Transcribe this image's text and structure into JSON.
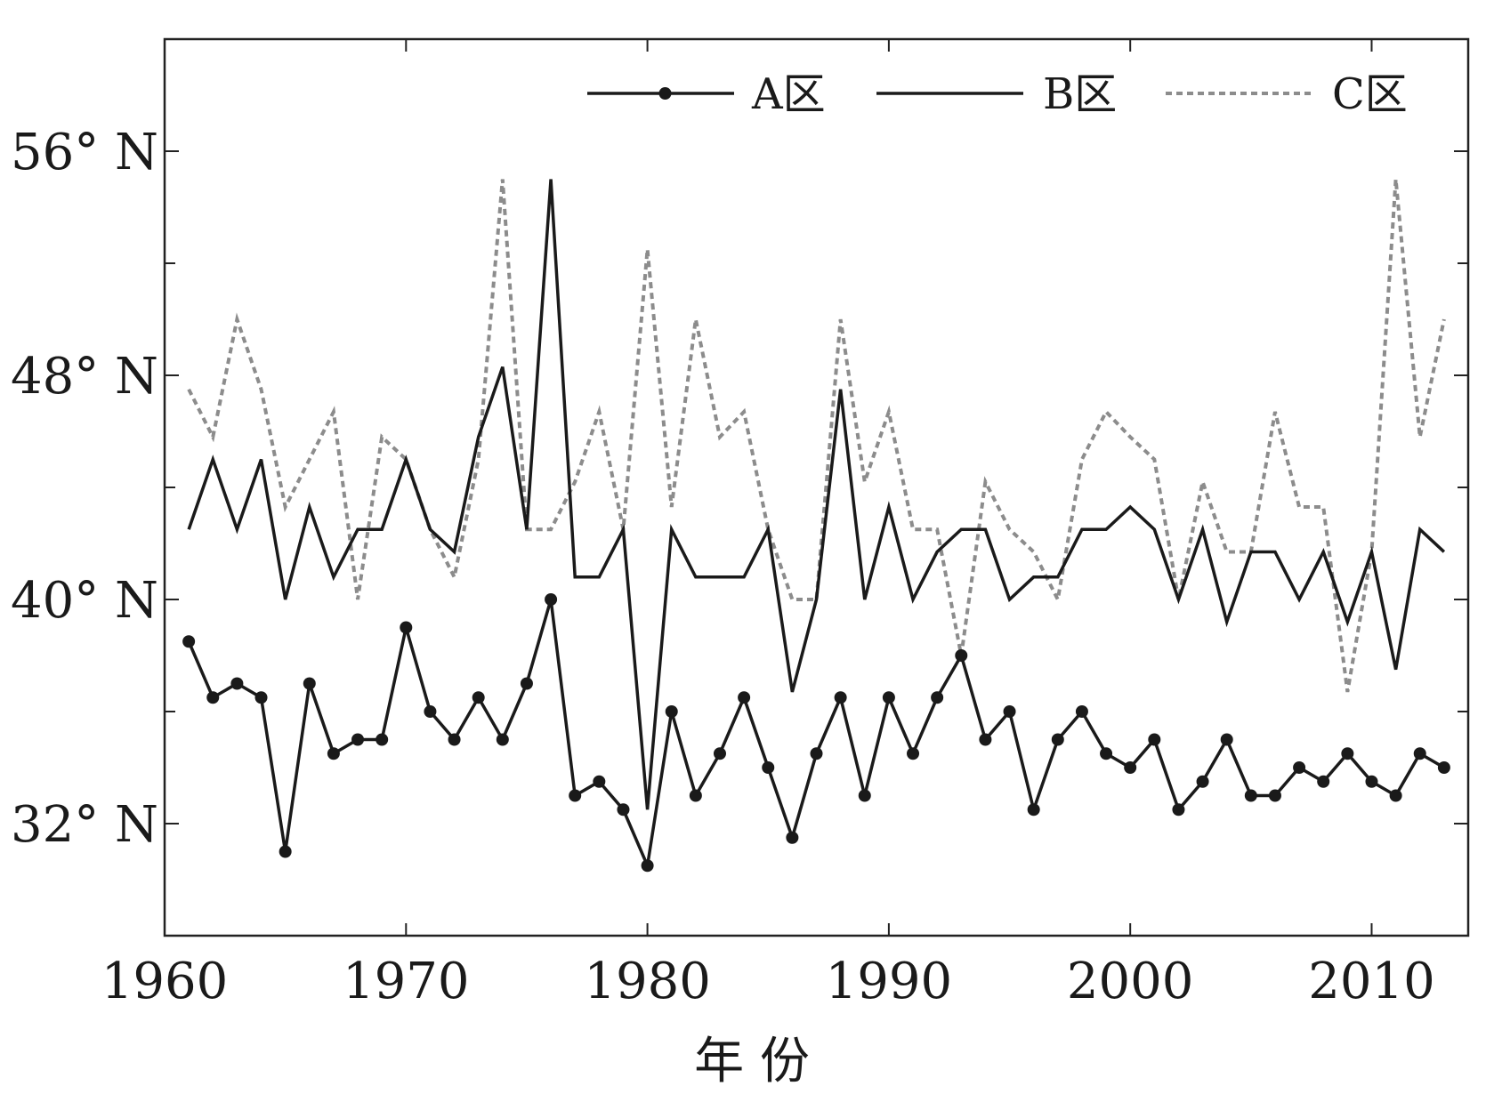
{
  "chart_data": {
    "type": "line",
    "title": "",
    "xlabel": "年 份",
    "ylabel": "",
    "x": [
      1961,
      1962,
      1963,
      1964,
      1965,
      1966,
      1967,
      1968,
      1969,
      1970,
      1971,
      1972,
      1973,
      1974,
      1975,
      1976,
      1977,
      1978,
      1979,
      1980,
      1981,
      1982,
      1983,
      1984,
      1985,
      1986,
      1987,
      1988,
      1989,
      1990,
      1991,
      1992,
      1993,
      1994,
      1995,
      1996,
      1997,
      1998,
      1999,
      2000,
      2001,
      2002,
      2003,
      2004,
      2005,
      2006,
      2007,
      2008,
      2009,
      2010,
      2011,
      2012,
      2013
    ],
    "xlim": [
      1960,
      2014
    ],
    "ylim": [
      28,
      60
    ],
    "xticks": [
      1960,
      1970,
      1980,
      1990,
      2000,
      2010
    ],
    "xtick_labels": [
      "1960",
      "1970",
      "1980",
      "1990",
      "2000",
      "2010"
    ],
    "yticks": [
      32,
      40,
      48,
      56
    ],
    "ytick_labels": [
      "32° N",
      "40° N",
      "48° N",
      "56° N"
    ],
    "minor_yticks": [
      36,
      44,
      52
    ],
    "grid": false,
    "legend_position": "top-right",
    "series": [
      {
        "name": "A区",
        "color": "#1a1a1a",
        "line_style": "solid",
        "marker": "dot",
        "values": [
          38.5,
          36.5,
          37,
          36.5,
          31,
          37,
          34.5,
          35,
          35,
          39,
          36,
          35,
          36.5,
          35,
          37,
          40,
          33,
          33.5,
          32.5,
          30.5,
          36,
          33,
          34.5,
          36.5,
          34,
          31.5,
          34.5,
          36.5,
          33,
          36.5,
          34.5,
          36.5,
          38,
          35,
          36,
          32.5,
          35,
          36,
          34.5,
          34,
          35,
          32.5,
          33.5,
          35,
          33,
          33,
          34,
          33.5,
          34.5,
          33.5,
          33,
          34.5,
          34
        ]
      },
      {
        "name": "B区",
        "color": "#1a1a1a",
        "line_style": "solid",
        "marker": "none",
        "values": [
          42.5,
          45,
          42.5,
          45,
          40,
          43.3,
          40.8,
          42.5,
          42.5,
          45,
          42.5,
          41.7,
          45.8,
          48.3,
          42.5,
          55,
          40.8,
          40.8,
          42.5,
          32.5,
          42.5,
          40.8,
          40.8,
          40.8,
          42.5,
          36.7,
          40,
          47.5,
          40,
          43.3,
          40,
          41.7,
          42.5,
          42.5,
          40,
          40.8,
          40.8,
          42.5,
          42.5,
          43.3,
          42.5,
          40,
          42.5,
          39.2,
          41.7,
          41.7,
          40,
          41.7,
          39.2,
          41.7,
          37.5,
          42.5,
          41.7
        ]
      },
      {
        "name": "C区",
        "color": "#8c8c8c",
        "line_style": "dashed",
        "marker": "none",
        "values": [
          47.5,
          45.8,
          50,
          47.5,
          43.3,
          45,
          46.7,
          40,
          45.8,
          45,
          42.5,
          40.8,
          45,
          55,
          42.5,
          42.5,
          44.2,
          46.7,
          42.5,
          52.5,
          43.3,
          50,
          45.8,
          46.7,
          42.5,
          40,
          40,
          50,
          44.2,
          46.7,
          42.5,
          42.5,
          38,
          44.2,
          42.5,
          41.7,
          40,
          45,
          46.7,
          45.8,
          45,
          40,
          44.2,
          41.7,
          41.7,
          46.7,
          43.3,
          43.3,
          36.7,
          41.7,
          55,
          45.8,
          50
        ]
      }
    ]
  }
}
